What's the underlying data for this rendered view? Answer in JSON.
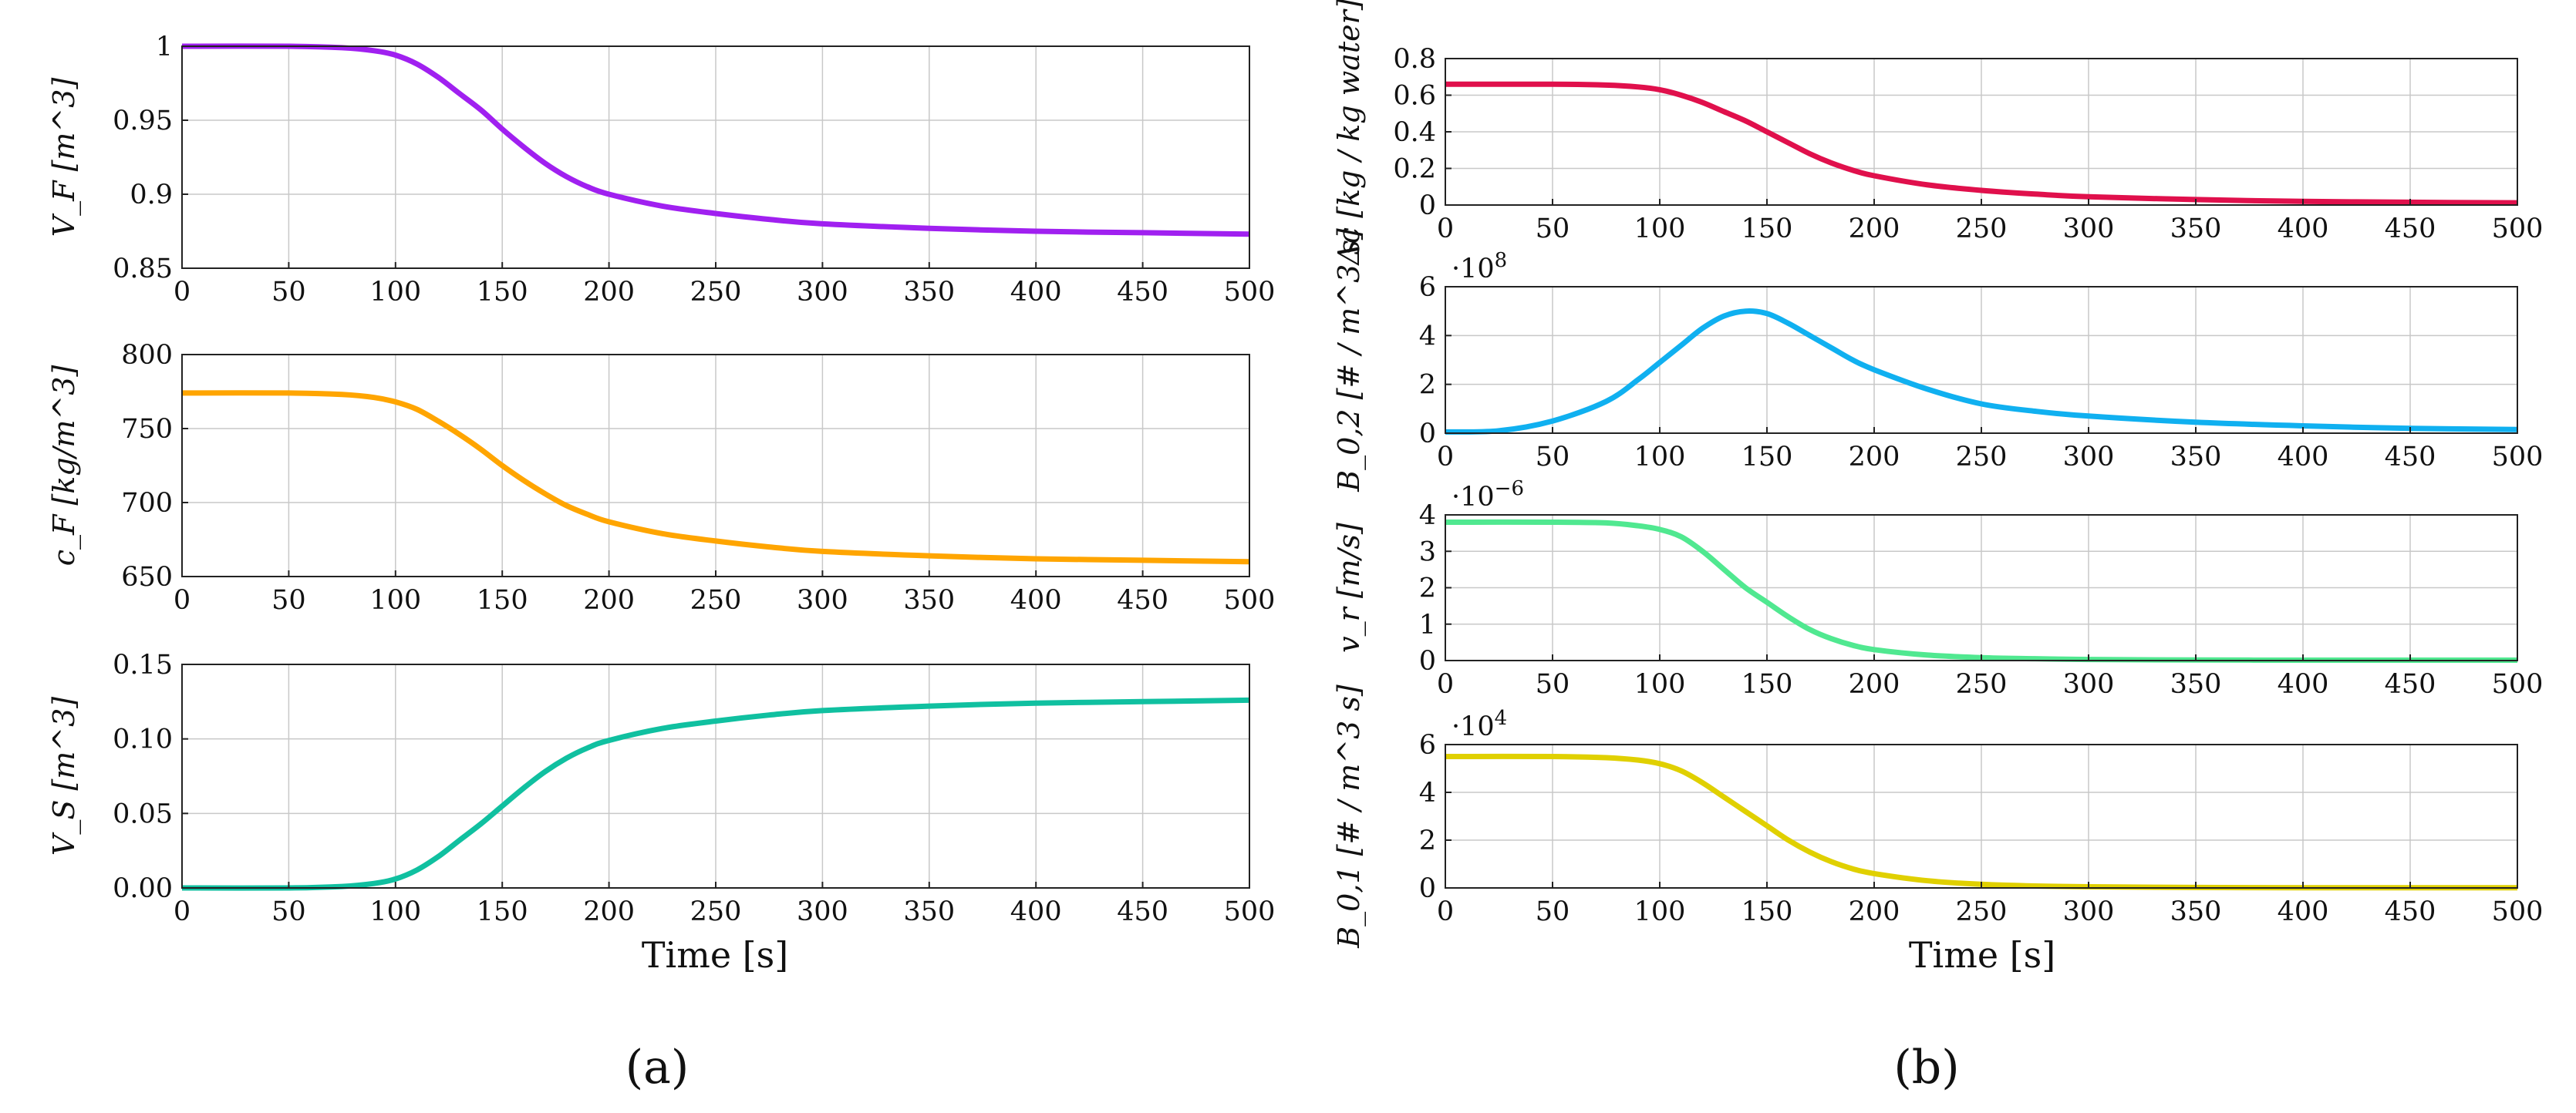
{
  "figure": {
    "panel_a_label": "(a)",
    "panel_b_label": "(b)",
    "xlabel_a": "Time [s]",
    "xlabel_b": "Time [s]"
  },
  "chart_data": [
    {
      "id": "VF",
      "panel": "a",
      "type": "line",
      "ylabel": "V_F [m^3]",
      "xlim": [
        0,
        500
      ],
      "ylim": [
        0.85,
        1.0
      ],
      "xticks": [
        0,
        50,
        100,
        150,
        200,
        250,
        300,
        350,
        400,
        450,
        500
      ],
      "xtick_labels": [
        "0",
        "50",
        "100",
        "150",
        "200",
        "250",
        "300",
        "350",
        "400",
        "450",
        "500"
      ],
      "yticks": [
        0.85,
        0.9,
        0.95,
        1.0
      ],
      "ytick_labels": [
        "0.85",
        "0.9",
        "0.95",
        "1"
      ],
      "multiplier": "",
      "color": "#a020f0",
      "series": [
        {
          "name": "V_F",
          "x": [
            0,
            50,
            75,
            90,
            100,
            110,
            120,
            130,
            140,
            150,
            160,
            170,
            180,
            190,
            200,
            225,
            250,
            275,
            300,
            350,
            400,
            450,
            500
          ],
          "y": [
            1.0,
            1.0,
            0.999,
            0.997,
            0.994,
            0.988,
            0.979,
            0.968,
            0.957,
            0.944,
            0.932,
            0.921,
            0.912,
            0.905,
            0.9,
            0.892,
            0.887,
            0.883,
            0.88,
            0.877,
            0.875,
            0.874,
            0.873
          ]
        }
      ]
    },
    {
      "id": "cF",
      "panel": "a",
      "type": "line",
      "ylabel": "c_F [kg/m^3]",
      "xlim": [
        0,
        500
      ],
      "ylim": [
        650,
        800
      ],
      "xticks": [
        0,
        50,
        100,
        150,
        200,
        250,
        300,
        350,
        400,
        450,
        500
      ],
      "xtick_labels": [
        "0",
        "50",
        "100",
        "150",
        "200",
        "250",
        "300",
        "350",
        "400",
        "450",
        "500"
      ],
      "yticks": [
        650,
        700,
        750,
        800
      ],
      "ytick_labels": [
        "650",
        "700",
        "750",
        "800"
      ],
      "multiplier": "",
      "color": "#ffa500",
      "series": [
        {
          "name": "c_F",
          "x": [
            0,
            50,
            75,
            90,
            100,
            110,
            120,
            130,
            140,
            150,
            160,
            170,
            180,
            190,
            200,
            225,
            250,
            275,
            300,
            350,
            400,
            450,
            500
          ],
          "y": [
            774,
            774,
            773,
            771,
            768,
            763,
            755,
            746,
            736,
            725,
            715,
            706,
            698,
            692,
            687,
            679,
            674,
            670,
            667,
            664,
            662,
            661,
            660
          ]
        }
      ]
    },
    {
      "id": "VS",
      "panel": "a",
      "type": "line",
      "ylabel": "V_S [m^3]",
      "xlim": [
        0,
        500
      ],
      "ylim": [
        0,
        0.15
      ],
      "xticks": [
        0,
        50,
        100,
        150,
        200,
        250,
        300,
        350,
        400,
        450,
        500
      ],
      "xtick_labels": [
        "0",
        "50",
        "100",
        "150",
        "200",
        "250",
        "300",
        "350",
        "400",
        "450",
        "500"
      ],
      "yticks": [
        0,
        0.05,
        0.1,
        0.15
      ],
      "ytick_labels": [
        "0.00",
        "0.05",
        "0.10",
        "0.15"
      ],
      "multiplier": "",
      "color": "#10c0a0",
      "series": [
        {
          "name": "V_S",
          "x": [
            0,
            50,
            75,
            90,
            100,
            110,
            120,
            130,
            140,
            150,
            160,
            170,
            180,
            190,
            200,
            225,
            250,
            275,
            300,
            350,
            400,
            450,
            500
          ],
          "y": [
            0,
            0,
            0.001,
            0.003,
            0.006,
            0.012,
            0.021,
            0.032,
            0.043,
            0.055,
            0.067,
            0.078,
            0.087,
            0.094,
            0.099,
            0.107,
            0.112,
            0.116,
            0.119,
            0.122,
            0.124,
            0.125,
            0.126
          ]
        }
      ]
    },
    {
      "id": "dc",
      "panel": "b",
      "type": "line",
      "ylabel": "Δc [kg / kg water]",
      "xlim": [
        0,
        500
      ],
      "ylim": [
        0,
        0.8
      ],
      "xticks": [
        0,
        50,
        100,
        150,
        200,
        250,
        300,
        350,
        400,
        450,
        500
      ],
      "xtick_labels": [
        "0",
        "50",
        "100",
        "150",
        "200",
        "250",
        "300",
        "350",
        "400",
        "450",
        "500"
      ],
      "yticks": [
        0,
        0.2,
        0.4,
        0.6,
        0.8
      ],
      "ytick_labels": [
        "0",
        "0.2",
        "0.4",
        "0.6",
        "0.8"
      ],
      "multiplier": "",
      "color": "#e0104c",
      "series": [
        {
          "name": "Δc",
          "x": [
            0,
            50,
            75,
            90,
            100,
            110,
            120,
            130,
            140,
            150,
            160,
            170,
            180,
            190,
            200,
            225,
            250,
            275,
            300,
            350,
            400,
            450,
            500
          ],
          "y": [
            0.66,
            0.66,
            0.655,
            0.645,
            0.63,
            0.6,
            0.56,
            0.51,
            0.46,
            0.4,
            0.34,
            0.28,
            0.23,
            0.19,
            0.16,
            0.11,
            0.08,
            0.06,
            0.045,
            0.03,
            0.02,
            0.015,
            0.012
          ]
        }
      ]
    },
    {
      "id": "B02",
      "panel": "b",
      "type": "line",
      "ylabel": "B_0,2 [# / m^3 s]",
      "xlim": [
        0,
        500
      ],
      "ylim": [
        0,
        6
      ],
      "xticks": [
        0,
        50,
        100,
        150,
        200,
        250,
        300,
        350,
        400,
        450,
        500
      ],
      "xtick_labels": [
        "0",
        "50",
        "100",
        "150",
        "200",
        "250",
        "300",
        "350",
        "400",
        "450",
        "500"
      ],
      "yticks": [
        0,
        2,
        4,
        6
      ],
      "ytick_labels": [
        "0",
        "2",
        "4",
        "6"
      ],
      "multiplier": "·10^8",
      "color": "#10b0f0",
      "series": [
        {
          "name": "B_0,2",
          "x": [
            0,
            25,
            50,
            75,
            90,
            100,
            110,
            120,
            130,
            140,
            150,
            160,
            170,
            180,
            190,
            200,
            225,
            250,
            275,
            300,
            350,
            400,
            450,
            500
          ],
          "y": [
            0.05,
            0.1,
            0.5,
            1.3,
            2.2,
            2.9,
            3.6,
            4.3,
            4.8,
            5.0,
            4.9,
            4.5,
            4.0,
            3.5,
            3.0,
            2.6,
            1.8,
            1.2,
            0.9,
            0.7,
            0.45,
            0.3,
            0.2,
            0.15
          ]
        }
      ]
    },
    {
      "id": "vr",
      "panel": "b",
      "type": "line",
      "ylabel": "v_r [m/s]",
      "xlim": [
        0,
        500
      ],
      "ylim": [
        0,
        4
      ],
      "xticks": [
        0,
        50,
        100,
        150,
        200,
        250,
        300,
        350,
        400,
        450,
        500
      ],
      "xtick_labels": [
        "0",
        "50",
        "100",
        "150",
        "200",
        "250",
        "300",
        "350",
        "400",
        "450",
        "500"
      ],
      "yticks": [
        0,
        1,
        2,
        3,
        4
      ],
      "ytick_labels": [
        "0",
        "1",
        "2",
        "3",
        "4"
      ],
      "multiplier": "·10^−6",
      "color": "#50e890",
      "series": [
        {
          "name": "v_r",
          "x": [
            0,
            50,
            75,
            90,
            100,
            110,
            120,
            130,
            140,
            150,
            160,
            170,
            180,
            190,
            200,
            225,
            250,
            275,
            300,
            350,
            400,
            450,
            500
          ],
          "y": [
            3.8,
            3.8,
            3.78,
            3.7,
            3.6,
            3.4,
            3.0,
            2.5,
            2.0,
            1.6,
            1.2,
            0.85,
            0.6,
            0.42,
            0.3,
            0.15,
            0.08,
            0.05,
            0.03,
            0.015,
            0.01,
            0.01,
            0.01
          ]
        }
      ]
    },
    {
      "id": "B01",
      "panel": "b",
      "type": "line",
      "ylabel": "B_0,1 [# / m^3 s]",
      "xlim": [
        0,
        500
      ],
      "ylim": [
        0,
        6
      ],
      "xticks": [
        0,
        50,
        100,
        150,
        200,
        250,
        300,
        350,
        400,
        450,
        500
      ],
      "xtick_labels": [
        "0",
        "50",
        "100",
        "150",
        "200",
        "250",
        "300",
        "350",
        "400",
        "450",
        "500"
      ],
      "yticks": [
        0,
        2,
        4,
        6
      ],
      "ytick_labels": [
        "0",
        "2",
        "4",
        "6"
      ],
      "multiplier": "·10^4",
      "color": "#e0d000",
      "series": [
        {
          "name": "B_0,1",
          "x": [
            0,
            50,
            75,
            90,
            100,
            110,
            120,
            130,
            140,
            150,
            160,
            170,
            180,
            190,
            200,
            225,
            250,
            275,
            300,
            350,
            400,
            450,
            500
          ],
          "y": [
            5.5,
            5.5,
            5.45,
            5.35,
            5.2,
            4.9,
            4.4,
            3.8,
            3.2,
            2.6,
            2.0,
            1.5,
            1.1,
            0.8,
            0.6,
            0.3,
            0.15,
            0.08,
            0.05,
            0.02,
            0.01,
            0.01,
            0.01
          ]
        }
      ]
    }
  ]
}
